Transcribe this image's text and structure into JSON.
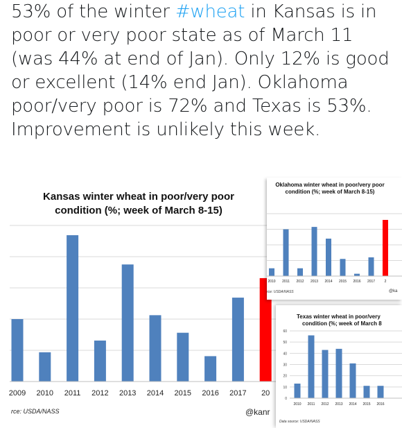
{
  "tweet": {
    "text_before": "53% of the winter ",
    "hashtag": "#wheat",
    "text_after": " in Kansas is in poor or very poor state as of March 11 (was 44% at end of Jan). Only 12% is good or excellent (14% end Jan). Oklahoma poor/very poor is 72% and Texas is 53%. Improvement is unlikely this week.",
    "hashtag_color": "#1da1f2"
  },
  "charts": {
    "kansas": {
      "title_line1": "Kansas winter wheat in poor/very poor",
      "title_line2": "condition (%; week of March 8-15)",
      "source": "rce: USDA/NASS",
      "credit": "@kanr"
    },
    "oklahoma": {
      "title_line1": "Oklahoma winter wheat in poor/very poor",
      "title_line2": "condition (%; week of March 8-15)",
      "source": "rce: USDA/NASS",
      "credit": "@ka"
    },
    "texas": {
      "title_line1": "Texas winter wheat in poor/very",
      "title_line2": "condition (%; week of March 8",
      "source": "Data source: USDA/NASS"
    }
  },
  "chart_data": [
    {
      "type": "bar",
      "title": "Kansas winter wheat in poor/very poor condition (%; week of March 8-15)",
      "categories": [
        "2009",
        "2010",
        "2011",
        "2012",
        "2013",
        "2014",
        "2015",
        "2016",
        "2017",
        "20"
      ],
      "values": [
        32,
        15,
        75,
        21,
        60,
        34,
        25,
        13,
        43,
        53
      ],
      "colors": [
        "#4f81bd",
        "#4f81bd",
        "#4f81bd",
        "#4f81bd",
        "#4f81bd",
        "#4f81bd",
        "#4f81bd",
        "#4f81bd",
        "#4f81bd",
        "#ff0000"
      ],
      "ylim": [
        0,
        80
      ]
    },
    {
      "type": "bar",
      "title": "Oklahoma winter wheat in poor/very poor condition (%; week of March 8-15)",
      "categories": [
        "2010",
        "2011",
        "2012",
        "2013",
        "2014",
        "2015",
        "2016",
        "2017",
        "2"
      ],
      "values": [
        10,
        60,
        10,
        63,
        48,
        22,
        3,
        24,
        72
      ],
      "colors": [
        "#4f81bd",
        "#4f81bd",
        "#4f81bd",
        "#4f81bd",
        "#4f81bd",
        "#4f81bd",
        "#4f81bd",
        "#4f81bd",
        "#ff0000"
      ],
      "ylim": [
        0,
        80
      ]
    },
    {
      "type": "bar",
      "title": "Texas winter wheat in poor/very condition (%; week of March 8",
      "categories": [
        "2010",
        "2011",
        "2012",
        "2013",
        "2014",
        "2015",
        "2016"
      ],
      "values": [
        13,
        56,
        43,
        44,
        31,
        11,
        11
      ],
      "yticks": [
        "0",
        "10",
        "20",
        "30",
        "40",
        "50",
        "60"
      ],
      "ylim": [
        0,
        60
      ]
    }
  ]
}
